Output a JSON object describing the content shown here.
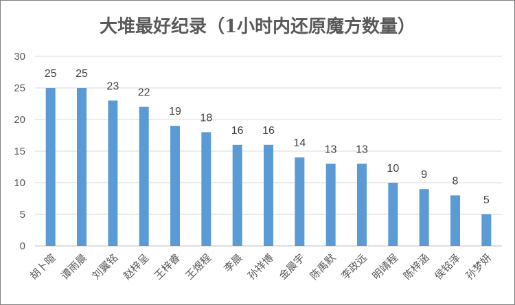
{
  "chart_data": {
    "type": "bar",
    "title": "大堆最好纪录（1小时内还原魔方数量）",
    "categories": [
      "胡卜暄",
      "谭雨晨",
      "刘翼铭",
      "赵梓呈",
      "王梓睿",
      "王煜程",
      "李晨",
      "孙祥博",
      "金晨宇",
      "陈禹默",
      "李政远",
      "明靖程",
      "陈梓涵",
      "侯铭泽",
      "孙梦妍"
    ],
    "values": [
      25,
      25,
      23,
      22,
      19,
      18,
      16,
      16,
      14,
      13,
      13,
      10,
      9,
      8,
      5
    ],
    "ylim": [
      0,
      30
    ],
    "yticks": [
      0,
      5,
      10,
      15,
      20,
      25,
      30
    ],
    "grid": true,
    "data_labels": true,
    "legend": "none",
    "colors": {
      "bar": "#5B9BD5",
      "grid": "#d9d9d9",
      "text": "#595959"
    }
  }
}
